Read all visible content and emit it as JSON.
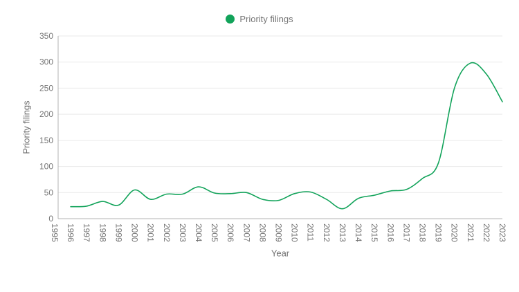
{
  "legend": {
    "items": [
      {
        "label": "Priority filings",
        "color": "#12a35a"
      }
    ]
  },
  "chart_data": {
    "type": "line",
    "title": "",
    "xlabel": "Year",
    "ylabel": "Priority filings",
    "xlim": [
      1995,
      2023
    ],
    "ylim": [
      0,
      350
    ],
    "grid": true,
    "legend_position": "top-center",
    "xticks": [
      1995,
      1996,
      1997,
      1998,
      1999,
      2000,
      2001,
      2002,
      2003,
      2004,
      2005,
      2006,
      2007,
      2008,
      2009,
      2010,
      2011,
      2012,
      2013,
      2014,
      2015,
      2016,
      2017,
      2018,
      2019,
      2020,
      2021,
      2022,
      2023
    ],
    "yticks": [
      0,
      50,
      100,
      150,
      200,
      250,
      300,
      350
    ],
    "series": [
      {
        "name": "Priority filings",
        "color": "#12a35a",
        "x": [
          1996,
          1997,
          1998,
          1999,
          2000,
          2001,
          2002,
          2003,
          2004,
          2005,
          2006,
          2007,
          2008,
          2009,
          2010,
          2011,
          2012,
          2013,
          2014,
          2015,
          2016,
          2017,
          2018,
          2019,
          2020,
          2021,
          2022,
          2023
        ],
        "values": [
          23,
          24,
          33,
          26,
          55,
          37,
          47,
          47,
          61,
          49,
          48,
          50,
          37,
          35,
          48,
          51,
          37,
          19,
          39,
          45,
          53,
          56,
          77,
          107,
          250,
          298,
          277,
          224
        ]
      }
    ]
  }
}
